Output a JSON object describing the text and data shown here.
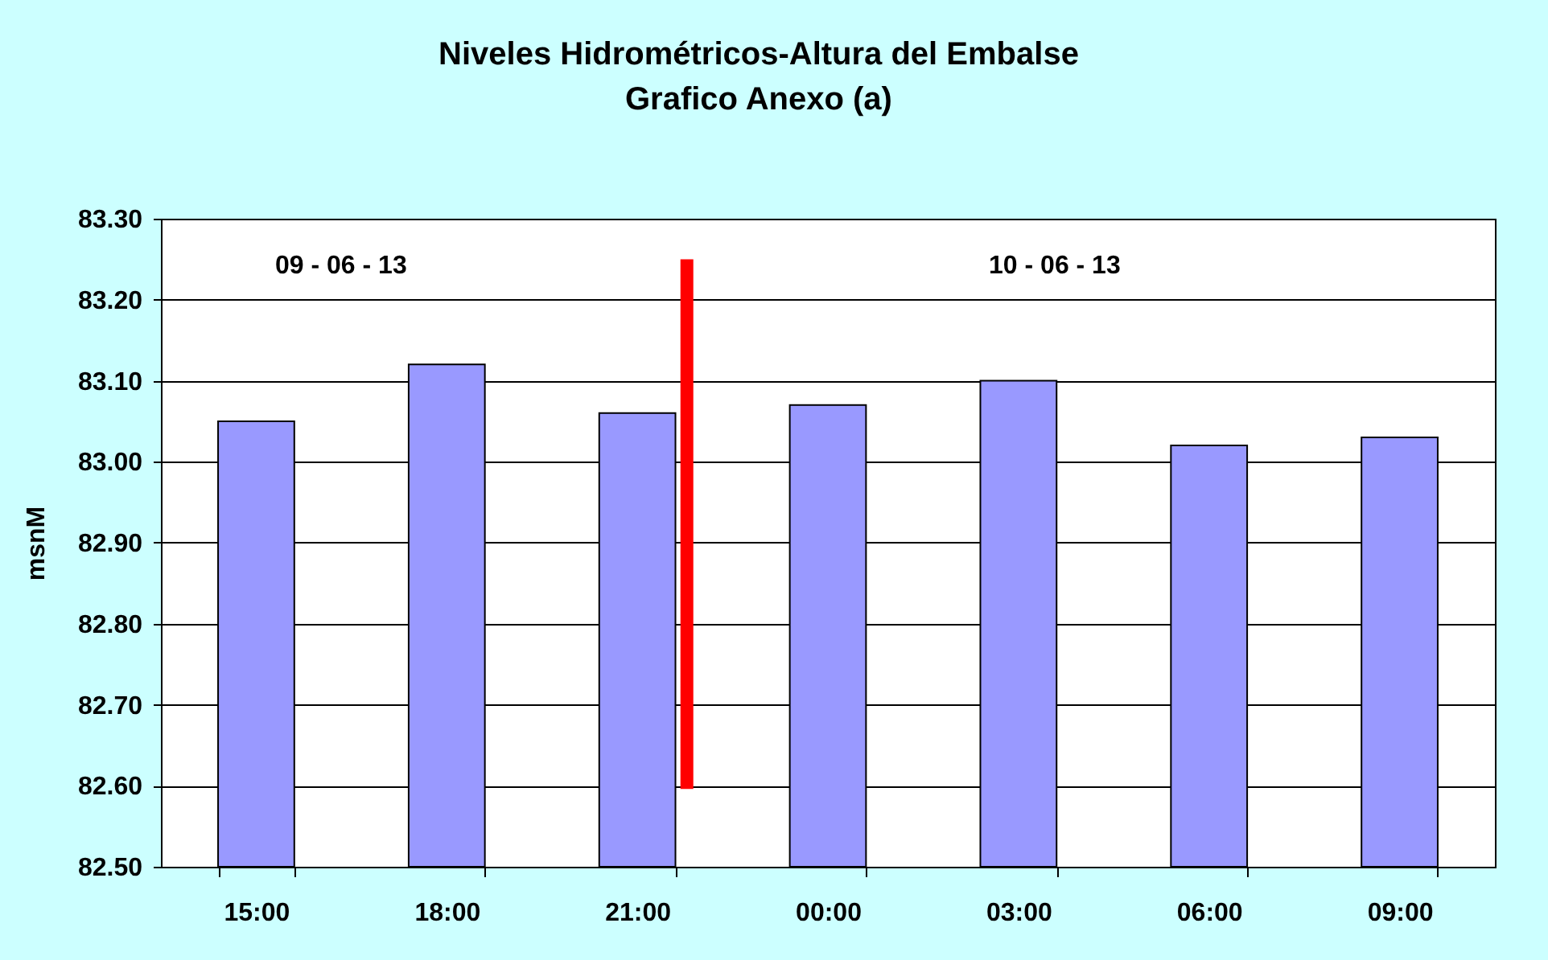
{
  "chart_data": {
    "type": "bar",
    "title": "Niveles Hidrométricos-Altura del Embalse",
    "subtitle": "Grafico Anexo (a)",
    "ylabel": "msnM",
    "categories": [
      "15:00",
      "18:00",
      "21:00",
      "00:00",
      "03:00",
      "06:00",
      "09:00"
    ],
    "values": [
      83.05,
      83.12,
      83.06,
      83.07,
      83.1,
      83.02,
      83.03
    ],
    "color": "#9999ff",
    "ylim": [
      82.5,
      83.3
    ],
    "yticks": [
      {
        "value": 82.5,
        "label": "82.50"
      },
      {
        "value": 82.6,
        "label": "82.60"
      },
      {
        "value": 82.7,
        "label": "82.70"
      },
      {
        "value": 82.8,
        "label": "82.80"
      },
      {
        "value": 82.9,
        "label": "82.90"
      },
      {
        "value": 83.0,
        "label": "83.00"
      },
      {
        "value": 83.1,
        "label": "83.10"
      },
      {
        "value": 83.2,
        "label": "83.20"
      },
      {
        "value": 83.3,
        "label": "83.30"
      }
    ],
    "grid": "y",
    "annotations": [
      "09 - 06 - 13",
      "10 - 06 - 13"
    ],
    "ref_lines": [
      {
        "axis": "x",
        "value": "21:00",
        "color": "#ff0000"
      }
    ]
  }
}
